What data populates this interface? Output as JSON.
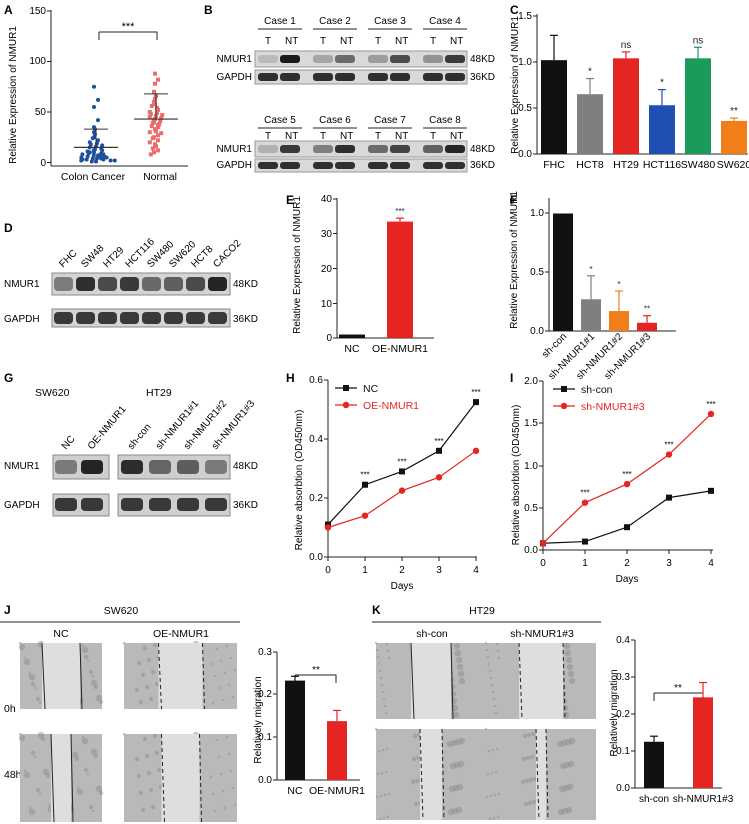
{
  "panels": {
    "A": {
      "letter": "A",
      "ylabel": "Relative Expression of NMUR1",
      "yticks": [
        "0",
        "50",
        "100",
        "150"
      ],
      "xlabels": [
        "Colon Cancer",
        "Normal"
      ],
      "sig": "***"
    },
    "B": {
      "letter": "B",
      "cases_top": [
        "Case 1",
        "Case 2",
        "Case 3",
        "Case 4"
      ],
      "cases_bottom": [
        "Case 5",
        "Case 6",
        "Case 7",
        "Case 8"
      ],
      "t": "T",
      "nt": "NT",
      "rows": [
        "NMUR1",
        "GAPDH"
      ],
      "kd": [
        "48KD",
        "36KD"
      ]
    },
    "C": {
      "letter": "C",
      "ylabel": "Relative Expression of NMUR1",
      "yticks": [
        "0.0",
        "0.5",
        "1.0",
        "1.5"
      ]
    },
    "D": {
      "letter": "D",
      "lanes": [
        "FHC",
        "SW48",
        "HT29",
        "HCT116",
        "SW480",
        "SW620",
        "HCT8",
        "CACO2"
      ],
      "rows": [
        "NMUR1",
        "GAPDH"
      ],
      "kd": [
        "48KD",
        "36KD"
      ]
    },
    "E": {
      "letter": "E",
      "ylabel": "Relative Expression of NMUR1",
      "yticks": [
        "0",
        "10",
        "20",
        "30",
        "40"
      ]
    },
    "F": {
      "letter": "F",
      "ylabel": "Relative Expression of NMUR1",
      "yticks": [
        "0.0",
        "0.5",
        "1.0"
      ]
    },
    "G": {
      "letter": "G",
      "group1": "SW620",
      "group2": "HT29",
      "lanes1": [
        "NC",
        "OE-NMUR1"
      ],
      "lanes2": [
        "sh-con",
        "sh-NMUR1#1",
        "sh-NMUR1#2",
        "sh-NMUR1#3"
      ],
      "rows": [
        "NMUR1",
        "GAPDH"
      ],
      "kd": [
        "48KD",
        "36KD"
      ]
    },
    "H": {
      "letter": "H",
      "ylabel": "Relative absorbtion (OD450nm)",
      "xlabel": "Days",
      "yticks": [
        "0.0",
        "0.2",
        "0.4",
        "0.6"
      ],
      "xticks": [
        "0",
        "1",
        "2",
        "3",
        "4"
      ]
    },
    "I": {
      "letter": "I",
      "ylabel": "Relative absorbtion (OD450nm)",
      "xlabel": "Days",
      "yticks": [
        "0.0",
        "0.5",
        "1.0",
        "1.5",
        "2.0"
      ],
      "xticks": [
        "0",
        "1",
        "2",
        "3",
        "4"
      ]
    },
    "J": {
      "letter": "J",
      "title": "SW620",
      "cols": [
        "NC",
        "OE-NMUR1"
      ],
      "rows": [
        "0h",
        "48h"
      ],
      "ylabel": "Relatively migration",
      "yticks": [
        "0.0",
        "0.1",
        "0.2",
        "0.3"
      ],
      "sig": "**"
    },
    "K": {
      "letter": "K",
      "title": "HT29",
      "cols": [
        "sh-con",
        "sh-NMUR1#3"
      ],
      "ylabel": "Relatively migration",
      "yticks": [
        "0.0",
        "0.1",
        "0.2",
        "0.3",
        "0.4"
      ],
      "sig": "**"
    }
  },
  "colors": {
    "black": "#111111",
    "gray": "#7f7f7f",
    "red": "#e52521",
    "blue": "#1f4fb3",
    "green": "#1a9a5b",
    "orange": "#f07f1a",
    "normal": "#ec6d6d",
    "cancer": "#1c4f9e"
  },
  "chart_data": [
    {
      "panel": "A",
      "type": "scatter",
      "categories": [
        "Colon Cancer",
        "Normal"
      ],
      "means": [
        15,
        43
      ],
      "sd_upper": [
        33,
        68
      ],
      "ylim": [
        0,
        150
      ]
    },
    {
      "panel": "C",
      "type": "bar",
      "categories": [
        "FHC",
        "HCT8",
        "HT29",
        "HCT116",
        "SW480",
        "SW620"
      ],
      "values": [
        1.02,
        0.65,
        1.04,
        0.53,
        1.04,
        0.36
      ],
      "errors": [
        0.27,
        0.17,
        0.07,
        0.17,
        0.12,
        0.03
      ],
      "labels": [
        "",
        "*",
        "ns",
        "*",
        "ns",
        "**"
      ],
      "ylim": [
        0,
        1.5
      ]
    },
    {
      "panel": "E",
      "type": "bar",
      "categories": [
        "NC",
        "OE-NMUR1"
      ],
      "values": [
        1,
        33.5
      ],
      "errors": [
        0,
        1
      ],
      "labels": [
        "",
        "***"
      ],
      "ylim": [
        0,
        40
      ]
    },
    {
      "panel": "F",
      "type": "bar",
      "categories": [
        "sh-con",
        "sh-NMUR1#1",
        "sh-NMUR1#2",
        "sh-NMUR1#3"
      ],
      "values": [
        1.0,
        0.27,
        0.17,
        0.07
      ],
      "errors": [
        0,
        0.2,
        0.17,
        0.06
      ],
      "labels": [
        "",
        "*",
        "*",
        "**"
      ],
      "ylim": [
        0,
        1.2
      ]
    },
    {
      "panel": "H",
      "type": "line",
      "x": [
        0,
        1,
        2,
        3,
        4
      ],
      "series": [
        {
          "name": "NC",
          "values": [
            0.11,
            0.245,
            0.29,
            0.36,
            0.525
          ]
        },
        {
          "name": "OE-NMUR1",
          "values": [
            0.1,
            0.14,
            0.225,
            0.27,
            0.36
          ]
        }
      ],
      "labels": [
        "",
        "***",
        "***",
        "***",
        "***"
      ],
      "ylim": [
        0,
        0.6
      ]
    },
    {
      "panel": "I",
      "type": "line",
      "x": [
        0,
        1,
        2,
        3,
        4
      ],
      "series": [
        {
          "name": "sh-con",
          "values": [
            0.08,
            0.1,
            0.27,
            0.62,
            0.7
          ]
        },
        {
          "name": "sh-NMUR1#3",
          "values": [
            0.08,
            0.56,
            0.78,
            1.13,
            1.61
          ]
        }
      ],
      "labels": [
        "",
        "***",
        "***",
        "***",
        "***"
      ],
      "ylim": [
        0,
        2.0
      ]
    },
    {
      "panel": "J",
      "type": "bar",
      "categories": [
        "NC",
        "OE-NMUR1"
      ],
      "values": [
        0.233,
        0.138
      ],
      "errors": [
        0.01,
        0.025
      ],
      "ylim": [
        0,
        0.3
      ]
    },
    {
      "panel": "K",
      "type": "bar",
      "categories": [
        "sh-con",
        "sh-NMUR1#3"
      ],
      "values": [
        0.125,
        0.245
      ],
      "errors": [
        0.015,
        0.04
      ],
      "ylim": [
        0,
        0.4
      ]
    }
  ]
}
